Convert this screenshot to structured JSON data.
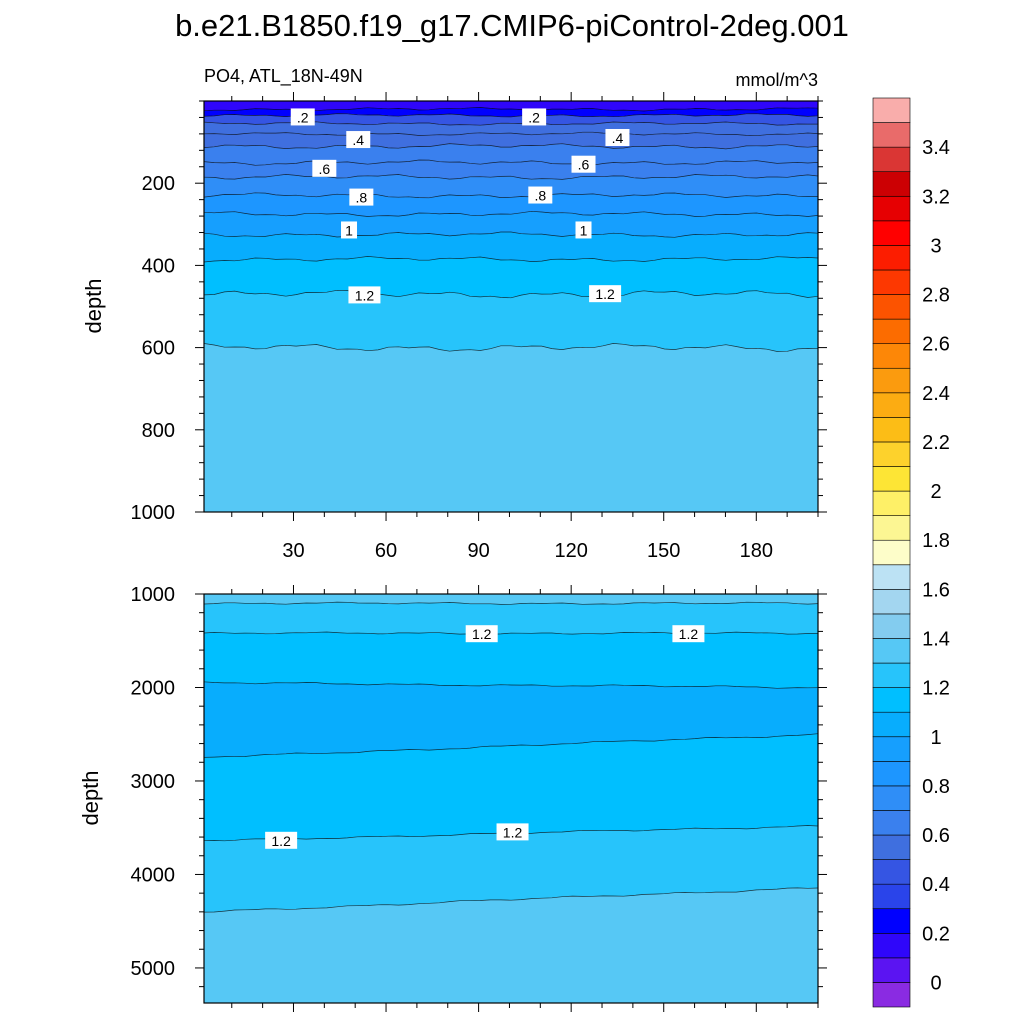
{
  "chart_data": {
    "type": "heatmap",
    "title": "b.e21.B1850.f19_g17.CMIP6-piControl-2deg.001",
    "subtitle_left": "PO4, ATL_18N-49N",
    "units": "mmol/m^3",
    "colorbar": {
      "tick_labels": [
        "0",
        "0.2",
        "0.4",
        "0.6",
        "0.8",
        "1",
        "1.2",
        "1.4",
        "1.6",
        "1.8",
        "2",
        "2.2",
        "2.4",
        "2.6",
        "2.8",
        "3",
        "3.2",
        "3.4"
      ],
      "colors": [
        "#8a2be2",
        "#5b14f2",
        "#2f06fa",
        "#0000ff",
        "#2a44ea",
        "#3555e3",
        "#3f6fdf",
        "#3a80ee",
        "#2f8ef7",
        "#1d96ff",
        "#169ffe",
        "#08adfd",
        "#00bfff",
        "#27c4fb",
        "#56c8f5",
        "#83ccef",
        "#a3d6f0",
        "#bce2f4",
        "#fdfdc9",
        "#fcf693",
        "#fef067",
        "#fde535",
        "#fdd22c",
        "#fcbd16",
        "#fcac12",
        "#fb9b0e",
        "#fd8707",
        "#fc6c00",
        "#fc5300",
        "#fd3801",
        "#fc1d00",
        "#ff0000",
        "#e60002",
        "#cc0003",
        "#da3634",
        "#e96b6a",
        "#f9adab"
      ]
    },
    "panels": [
      {
        "name": "upper",
        "xlabel": "",
        "ylabel": "depth",
        "x_ticks": [
          "30",
          "60",
          "90",
          "120",
          "150",
          "180"
        ],
        "x_tick_values": [
          30,
          60,
          90,
          120,
          150,
          180
        ],
        "y_ticks": [
          "200",
          "400",
          "600",
          "800",
          "1000"
        ],
        "y_tick_values": [
          200,
          400,
          600,
          800,
          1000
        ],
        "xlim": [
          1,
          200
        ],
        "ylim": [
          1000,
          0
        ],
        "contour_depths": [
          20,
          35,
          55,
          80,
          110,
          150,
          185,
          230,
          275,
          325,
          385,
          470,
          600
        ],
        "bands": [
          {
            "top": 0,
            "bottom": 20,
            "value": 0.1
          },
          {
            "top": 20,
            "bottom": 35,
            "value": 0.3
          },
          {
            "top": 35,
            "bottom": 55,
            "value": 0.4
          },
          {
            "top": 55,
            "bottom": 80,
            "value": 0.5
          },
          {
            "top": 80,
            "bottom": 110,
            "value": 0.55
          },
          {
            "top": 110,
            "bottom": 150,
            "value": 0.65
          },
          {
            "top": 150,
            "bottom": 185,
            "value": 0.7
          },
          {
            "top": 185,
            "bottom": 230,
            "value": 0.75
          },
          {
            "top": 230,
            "bottom": 275,
            "value": 0.85
          },
          {
            "top": 275,
            "bottom": 325,
            "value": 0.95
          },
          {
            "top": 325,
            "bottom": 385,
            "value": 1.05
          },
          {
            "top": 385,
            "bottom": 470,
            "value": 1.15
          },
          {
            "top": 470,
            "bottom": 600,
            "value": 1.25
          },
          {
            "top": 600,
            "bottom": 1000,
            "value": 1.35
          }
        ],
        "contour_labels": [
          {
            "text": ".2",
            "x": 33,
            "depth": 40
          },
          {
            "text": ".2",
            "x": 108,
            "depth": 40
          },
          {
            "text": ".4",
            "x": 51,
            "depth": 95
          },
          {
            "text": ".4",
            "x": 135,
            "depth": 90
          },
          {
            "text": ".6",
            "x": 40,
            "depth": 165
          },
          {
            "text": ".6",
            "x": 124,
            "depth": 155
          },
          {
            "text": ".8",
            "x": 52,
            "depth": 235
          },
          {
            "text": ".8",
            "x": 110,
            "depth": 230
          },
          {
            "text": "1",
            "x": 48,
            "depth": 315
          },
          {
            "text": "1",
            "x": 124,
            "depth": 315
          },
          {
            "text": "1.2",
            "x": 53,
            "depth": 473
          },
          {
            "text": "1.2",
            "x": 131,
            "depth": 470
          }
        ]
      },
      {
        "name": "lower",
        "xlabel": "",
        "ylabel": "depth",
        "x_ticks": [],
        "y_ticks": [
          "1000",
          "2000",
          "3000",
          "4000",
          "5000"
        ],
        "y_tick_values": [
          1000,
          2000,
          3000,
          4000,
          5000
        ],
        "xlim": [
          1,
          200
        ],
        "ylim": [
          5375,
          1000
        ],
        "contour_depths": [
          [
            1100,
            1100
          ],
          [
            1420,
            1420
          ],
          [
            1950,
            2000
          ],
          [
            2750,
            2500
          ],
          [
            3640,
            3480
          ],
          [
            4400,
            4140
          ]
        ],
        "bands": [
          {
            "value": 1.35
          },
          {
            "value": 1.25
          },
          {
            "value": 1.15
          },
          {
            "value": 1.05
          },
          {
            "value": 1.15
          },
          {
            "value": 1.25
          },
          {
            "value": 1.35
          }
        ],
        "contour_labels": [
          {
            "text": "1.2",
            "x": 91,
            "depth": 1430
          },
          {
            "text": "1.2",
            "x": 158,
            "depth": 1430
          },
          {
            "text": "1.2",
            "x": 26,
            "depth": 3640
          },
          {
            "text": "1.2",
            "x": 101,
            "depth": 3550
          }
        ]
      }
    ]
  }
}
